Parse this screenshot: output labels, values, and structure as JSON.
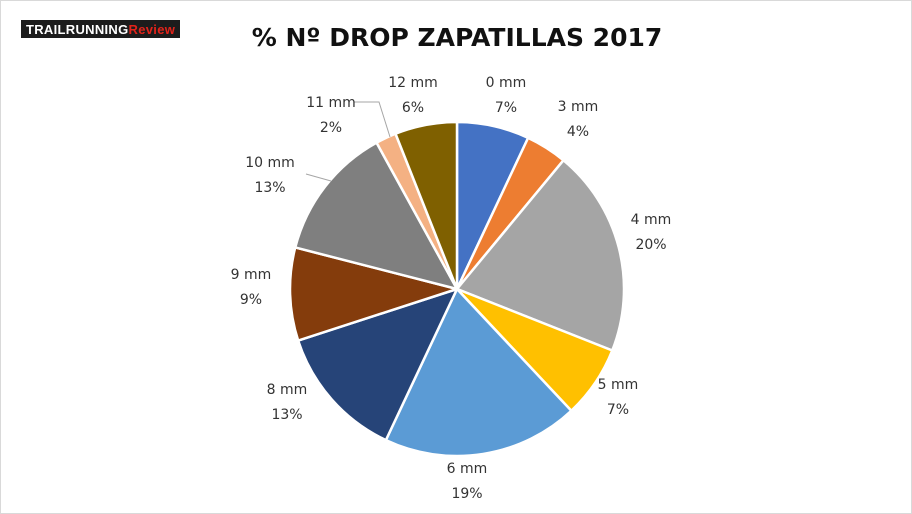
{
  "logo": {
    "part1": "TRAILRUNNING",
    "part2": "Review"
  },
  "colors": {
    "brand_red": "#e2231a",
    "logo_bg": "#1c1c1c"
  },
  "chart_data": {
    "type": "pie",
    "title": "% Nº DROP ZAPATILLAS 2017",
    "legend": "none",
    "slices": [
      {
        "label": "0 mm",
        "pct_label": "7%",
        "value": 7,
        "color": "#4472c4"
      },
      {
        "label": "3 mm",
        "pct_label": "4%",
        "value": 4,
        "color": "#ed7d31"
      },
      {
        "label": "4 mm",
        "pct_label": "20%",
        "value": 20,
        "color": "#a5a5a5"
      },
      {
        "label": "5 mm",
        "pct_label": "7%",
        "value": 7,
        "color": "#ffc000"
      },
      {
        "label": "6 mm",
        "pct_label": "19%",
        "value": 19,
        "color": "#5b9bd5"
      },
      {
        "label": "8 mm",
        "pct_label": "13%",
        "value": 13,
        "color": "#264478"
      },
      {
        "label": "9 mm",
        "pct_label": "9%",
        "value": 9,
        "color": "#843c0c"
      },
      {
        "label": "10 mm",
        "pct_label": "13%",
        "value": 13,
        "color": "#7f7f7f"
      },
      {
        "label": "11 mm",
        "pct_label": "2%",
        "value": 2,
        "color": "#f4b183"
      },
      {
        "label": "12 mm",
        "pct_label": "6%",
        "value": 6,
        "color": "#7f6000"
      }
    ]
  }
}
